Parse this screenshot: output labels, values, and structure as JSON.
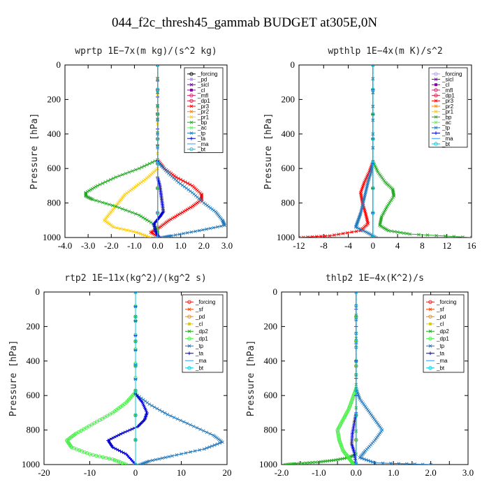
{
  "figure": {
    "title": "044_f2c_thresh45_gammab  BUDGET at305E,0N"
  },
  "chart_data": [
    {
      "type": "line",
      "title": "wprtp  1E−7x(m kg)/(s^2 kg)",
      "ylabel": "Pressure [hPa]",
      "xlim": [
        -4,
        3
      ],
      "ylim": [
        1000,
        0
      ],
      "xticks": [
        -4,
        -3,
        -2,
        -1,
        0,
        1,
        2,
        3
      ],
      "xtick_labels": [
        "-4.0",
        "-3.0",
        "-2.0",
        "-1.0",
        "0.0",
        "1.0",
        "2.0",
        "3.0"
      ],
      "yticks": [
        0,
        200,
        400,
        600,
        800,
        1000
      ],
      "ytick_labels": [
        "0",
        "200",
        "400",
        "600",
        "800",
        "1000"
      ],
      "legend": {
        "position": "top-right"
      },
      "series": [
        {
          "name": "_forcing",
          "color": "#000000",
          "marker": "o",
          "p": [
            0,
            1000
          ],
          "v": [
            0,
            0
          ]
        },
        {
          "name": "_pd",
          "color": "#bb99ee",
          "marker": "s",
          "p": [
            0,
            1000
          ],
          "v": [
            0,
            0
          ]
        },
        {
          "name": "_sicl",
          "color": "#7700aa",
          "marker": "x",
          "p": [
            0,
            1000
          ],
          "v": [
            0,
            0
          ]
        },
        {
          "name": "_cl",
          "color": "#8800aa",
          "marker": "s",
          "p": [
            0,
            1000
          ],
          "v": [
            0,
            0
          ]
        },
        {
          "name": "_mfl",
          "color": "#cc2266",
          "marker": "o",
          "p": [
            0,
            1000
          ],
          "v": [
            0,
            0
          ]
        },
        {
          "name": "_dp1",
          "color": "#cc2244",
          "marker": "o",
          "p": [
            0,
            1000
          ],
          "v": [
            0,
            0
          ]
        },
        {
          "name": "_pr3",
          "color": "#ff0000",
          "marker": "x",
          "p": [
            0,
            550,
            600,
            650,
            700,
            750,
            780,
            820,
            860,
            900,
            940,
            970,
            1000
          ],
          "v": [
            0,
            0,
            0.3,
            0.8,
            1.5,
            1.9,
            1.9,
            1.5,
            1.0,
            0.5,
            0.1,
            -0.3,
            0.1
          ]
        },
        {
          "name": "_pr2",
          "color": "#ff8800",
          "marker": "x",
          "p": [
            0,
            1000
          ],
          "v": [
            0,
            0
          ]
        },
        {
          "name": "_pr1",
          "color": "#ffcc00",
          "marker": "x",
          "p": [
            0,
            600,
            650,
            700,
            750,
            800,
            850,
            900,
            940,
            970,
            1000
          ],
          "v": [
            0,
            0,
            -0.4,
            -0.9,
            -1.4,
            -1.7,
            -2.0,
            -2.3,
            -1.9,
            -0.9,
            -0.3
          ]
        },
        {
          "name": "_bp",
          "color": "#22aa22",
          "marker": "x",
          "p": [
            0,
            550,
            600,
            650,
            700,
            740,
            760,
            780,
            820,
            870,
            920,
            960,
            1000
          ],
          "v": [
            0,
            0,
            -0.8,
            -1.8,
            -2.6,
            -3.1,
            -3.1,
            -2.8,
            -1.8,
            -0.8,
            -0.2,
            0.0,
            0.0
          ]
        },
        {
          "name": "_ac",
          "color": "#66ee66",
          "marker": "x",
          "p": [
            0,
            1000
          ],
          "v": [
            0,
            0
          ]
        },
        {
          "name": "_tp",
          "color": "#2277bb",
          "marker": "x",
          "p": [
            0,
            560,
            620,
            680,
            740,
            800,
            850,
            900,
            930,
            960,
            990,
            1000
          ],
          "v": [
            0,
            0,
            0.4,
            0.9,
            1.5,
            2.0,
            2.5,
            2.8,
            2.9,
            1.8,
            0.6,
            0.2
          ]
        },
        {
          "name": "_ta",
          "color": "#0000cc",
          "marker": "+",
          "p": [
            0,
            650,
            700,
            750,
            800,
            850,
            880,
            920,
            960,
            1000
          ],
          "v": [
            0,
            0,
            0.1,
            0.15,
            0.2,
            0.25,
            0.1,
            -0.15,
            -0.1,
            0.05
          ]
        },
        {
          "name": "_ma",
          "color": "#3399ff",
          "marker": "-",
          "p": [
            0,
            1000
          ],
          "v": [
            0,
            0
          ]
        },
        {
          "name": "_bt",
          "color": "#00ccdd",
          "marker": "o",
          "p": [
            0,
            1000
          ],
          "v": [
            0,
            0
          ]
        }
      ]
    },
    {
      "type": "line",
      "title": "wpthlp  1E−4x(m K)/s^2",
      "ylabel": "Pressure [hPa]",
      "xlim": [
        -12,
        16
      ],
      "ylim": [
        1000,
        0
      ],
      "xticks": [
        -12,
        -8,
        -4,
        0,
        4,
        8,
        12,
        16
      ],
      "xtick_labels": [
        "-12",
        "-8",
        "-4",
        "0",
        "4",
        "8",
        "12",
        "16"
      ],
      "yticks": [
        0,
        200,
        400,
        600,
        800,
        1000
      ],
      "ytick_labels": [
        "0",
        "200",
        "400",
        "600",
        "800",
        "1000"
      ],
      "legend": {
        "position": "top-right"
      },
      "series": [
        {
          "name": "_forcing",
          "color": "#bb99ee",
          "marker": "o",
          "p": [
            0,
            1000
          ],
          "v": [
            0,
            0
          ]
        },
        {
          "name": "_sicl",
          "color": "#7700aa",
          "marker": "x",
          "p": [
            0,
            1000
          ],
          "v": [
            0,
            0
          ]
        },
        {
          "name": "_cl",
          "color": "#8800aa",
          "marker": "s",
          "p": [
            0,
            1000
          ],
          "v": [
            0,
            0
          ]
        },
        {
          "name": "_mfl",
          "color": "#cc2266",
          "marker": "o",
          "p": [
            0,
            1000
          ],
          "v": [
            0,
            0
          ]
        },
        {
          "name": "_dp1",
          "color": "#cc2244",
          "marker": "o",
          "p": [
            0,
            1000
          ],
          "v": [
            0,
            0
          ]
        },
        {
          "name": "_pr3",
          "color": "#ff0000",
          "marker": "x",
          "p": [
            0,
            560,
            620,
            680,
            740,
            800,
            860,
            920,
            960,
            990,
            1000
          ],
          "v": [
            0,
            0,
            -0.6,
            -1.4,
            -2.0,
            -1.7,
            -1.2,
            -0.8,
            -2.0,
            -7.0,
            -12.0
          ]
        },
        {
          "name": "_pr2",
          "color": "#ff8800",
          "marker": "x",
          "p": [
            0,
            1000
          ],
          "v": [
            0,
            0
          ]
        },
        {
          "name": "_pr1",
          "color": "#ffcc00",
          "marker": "x",
          "p": [
            0,
            1000
          ],
          "v": [
            0,
            0
          ]
        },
        {
          "name": "_bp",
          "color": "#22aa22",
          "marker": "x",
          "p": [
            0,
            560,
            620,
            680,
            720,
            760,
            820,
            880,
            930,
            960,
            980,
            1000
          ],
          "v": [
            0,
            0,
            0.8,
            2.0,
            3.2,
            3.4,
            2.3,
            1.4,
            1.1,
            2.5,
            6.0,
            16.0
          ]
        },
        {
          "name": "_ac",
          "color": "#66ee66",
          "marker": "x",
          "p": [
            0,
            1000
          ],
          "v": [
            0,
            0
          ]
        },
        {
          "name": "_tp",
          "color": "#2277bb",
          "marker": "x",
          "p": [
            0,
            560,
            620,
            680,
            740,
            800,
            860,
            900,
            940,
            970,
            1000
          ],
          "v": [
            0,
            0,
            -0.3,
            -0.8,
            -1.2,
            -1.6,
            -2.0,
            -2.4,
            -2.8,
            -1.0,
            0.5
          ]
        },
        {
          "name": "_ta",
          "color": "#0000cc",
          "marker": "+",
          "p": [
            0,
            1000
          ],
          "v": [
            0,
            0
          ]
        },
        {
          "name": "_ma",
          "color": "#3399ff",
          "marker": "-",
          "p": [
            0,
            1000
          ],
          "v": [
            0,
            0
          ]
        },
        {
          "name": "_bt",
          "color": "#00ccdd",
          "marker": "o",
          "p": [
            0,
            1000
          ],
          "v": [
            0,
            0
          ]
        }
      ]
    },
    {
      "type": "line",
      "title": "rtp2  1E−11x(kg^2)/(kg^2 s)",
      "ylabel": "Pressure [hPa]",
      "xlim": [
        -20,
        20
      ],
      "ylim": [
        1000,
        0
      ],
      "xticks": [
        -20,
        -10,
        0,
        10,
        20
      ],
      "xtick_labels": [
        "-20",
        "-10",
        "0",
        "10",
        "20"
      ],
      "yticks": [
        0,
        200,
        400,
        600,
        800,
        1000
      ],
      "ytick_labels": [
        "0",
        "200",
        "400",
        "600",
        "800",
        "1000"
      ],
      "legend": {
        "position": "top-right"
      },
      "series": [
        {
          "name": "_forcing",
          "color": "#dd2222",
          "marker": "o",
          "p": [
            0,
            1000
          ],
          "v": [
            0,
            0
          ]
        },
        {
          "name": "_sf",
          "color": "#ff4400",
          "marker": "x",
          "p": [
            0,
            1000
          ],
          "v": [
            0,
            0
          ]
        },
        {
          "name": "_pd",
          "color": "#ff8800",
          "marker": "o",
          "p": [
            0,
            1000
          ],
          "v": [
            0,
            0
          ]
        },
        {
          "name": "_cl",
          "color": "#ddcc00",
          "marker": "s",
          "p": [
            0,
            1000
          ],
          "v": [
            0,
            0
          ]
        },
        {
          "name": "_dp2",
          "color": "#22aa22",
          "marker": "x",
          "p": [
            0,
            1000
          ],
          "v": [
            0,
            0
          ]
        },
        {
          "name": "_dp1",
          "color": "#44ee44",
          "marker": "o",
          "p": [
            0,
            580,
            640,
            700,
            760,
            820,
            860,
            900,
            940,
            970,
            1000
          ],
          "v": [
            0,
            0,
            -2,
            -5,
            -9,
            -13,
            -15,
            -14,
            -10,
            -5,
            -2
          ]
        },
        {
          "name": "_tp",
          "color": "#2277bb",
          "marker": "x",
          "p": [
            0,
            590,
            650,
            710,
            770,
            830,
            870,
            910,
            950,
            980,
            1000
          ],
          "v": [
            0,
            0,
            3,
            7,
            12,
            17,
            19,
            15,
            8,
            3,
            1
          ]
        },
        {
          "name": "_ta",
          "color": "#0000cc",
          "marker": "+",
          "p": [
            0,
            590,
            640,
            700,
            740,
            780,
            820,
            860,
            900,
            940,
            1000
          ],
          "v": [
            0,
            0,
            1.5,
            2.5,
            2.0,
            0.5,
            -3.0,
            -6.0,
            -5.0,
            -2.0,
            0
          ]
        },
        {
          "name": "_ma",
          "color": "#3399ff",
          "marker": "-",
          "p": [
            0,
            1000
          ],
          "v": [
            0,
            0
          ]
        },
        {
          "name": "_bt",
          "color": "#00ccdd",
          "marker": "o",
          "p": [
            0,
            1000
          ],
          "v": [
            0,
            0
          ]
        }
      ]
    },
    {
      "type": "line",
      "title": "thlp2  1E−4x(K^2)/s",
      "ylabel": "Pressure [hPa]",
      "xlim": [
        -2,
        3
      ],
      "ylim": [
        1000,
        0
      ],
      "xticks": [
        -2,
        -1.5,
        -1,
        -0.5,
        0,
        0.5,
        1,
        1.5,
        2,
        2.5,
        3
      ],
      "xtick_labels": [
        "-2.0",
        "",
        "-1.0",
        "",
        "0.0",
        "",
        "1.0",
        "",
        "2.0",
        "",
        "3.0"
      ],
      "yticks": [
        0,
        200,
        400,
        600,
        800,
        1000
      ],
      "ytick_labels": [
        "0",
        "200",
        "400",
        "600",
        "800",
        "1000"
      ],
      "legend": {
        "position": "top-right"
      },
      "series": [
        {
          "name": "_forcing",
          "color": "#dd2222",
          "marker": "o",
          "p": [
            0,
            1000
          ],
          "v": [
            0,
            0
          ]
        },
        {
          "name": "_sf",
          "color": "#ff4400",
          "marker": "x",
          "p": [
            0,
            1000
          ],
          "v": [
            0,
            0
          ]
        },
        {
          "name": "_pd",
          "color": "#ff8800",
          "marker": "o",
          "p": [
            0,
            1000
          ],
          "v": [
            0,
            0
          ]
        },
        {
          "name": "_cl",
          "color": "#ddcc00",
          "marker": "s",
          "p": [
            0,
            1000
          ],
          "v": [
            0,
            0
          ]
        },
        {
          "name": "_dp2",
          "color": "#22aa22",
          "marker": "x",
          "p": [
            0,
            940,
            960,
            975,
            985,
            995,
            1000
          ],
          "v": [
            0,
            0,
            -0.2,
            -0.6,
            -1.0,
            -1.6,
            -1.9
          ]
        },
        {
          "name": "_dp1",
          "color": "#44ee44",
          "marker": "o",
          "p": [
            0,
            560,
            620,
            680,
            740,
            800,
            860,
            920,
            960,
            990,
            1000
          ],
          "v": [
            0,
            0,
            -0.1,
            -0.2,
            -0.35,
            -0.5,
            -0.45,
            -0.35,
            -0.2,
            -0.1,
            0
          ]
        },
        {
          "name": "_tp",
          "color": "#2277bb",
          "marker": "x",
          "p": [
            0,
            560,
            620,
            680,
            740,
            800,
            860,
            920,
            960,
            990,
            1000
          ],
          "v": [
            0,
            0,
            0.1,
            0.3,
            0.5,
            0.7,
            0.5,
            0.25,
            0.1,
            0.5,
            2.0
          ]
        },
        {
          "name": "_ta",
          "color": "#0000cc",
          "marker": "+",
          "p": [
            0,
            700,
            760,
            820,
            880,
            930,
            1000
          ],
          "v": [
            0,
            0,
            -0.05,
            -0.1,
            -0.12,
            -0.05,
            0
          ]
        },
        {
          "name": "_ma",
          "color": "#3399ff",
          "marker": "-",
          "p": [
            0,
            1000
          ],
          "v": [
            0,
            0
          ]
        },
        {
          "name": "_bt",
          "color": "#00ccdd",
          "marker": "o",
          "p": [
            0,
            1000
          ],
          "v": [
            0,
            0
          ]
        }
      ]
    }
  ]
}
